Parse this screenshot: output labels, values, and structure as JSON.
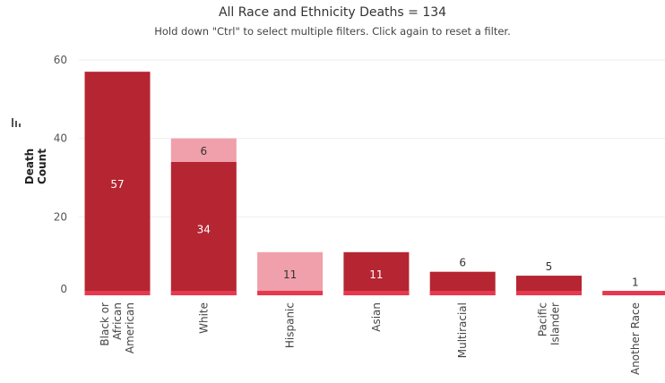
{
  "header": {
    "title": "All Race and Ethnicity Deaths = 134",
    "subtitle": "Hold down \"Ctrl\" to select multiple filters. Click again to reset a filter."
  },
  "colors": {
    "primary": "#b52532",
    "secondary": "#f0a0aa",
    "base_strip": "#e63950",
    "gridline": "#efefef"
  },
  "chart_data": {
    "type": "bar",
    "stacked": true,
    "ylabel": "Death Count",
    "ylim": [
      0,
      60
    ],
    "yticks": [
      0,
      20,
      40,
      60
    ],
    "grid": true,
    "categories": [
      [
        "Black or",
        "African",
        "American"
      ],
      [
        "White"
      ],
      [
        "Hispanic"
      ],
      [
        "Asian"
      ],
      [
        "Multiracial"
      ],
      [
        "Pacific",
        "Islander"
      ],
      [
        "Another Race"
      ]
    ],
    "series": [
      {
        "color": "#b52532",
        "values": [
          57,
          34,
          0,
          11,
          6,
          5,
          1
        ],
        "labels": [
          "57",
          "34",
          "",
          "11",
          "6",
          "5",
          "1"
        ]
      },
      {
        "color": "#f0a0aa",
        "values": [
          0,
          6,
          11,
          0,
          0,
          0,
          0
        ],
        "labels": [
          "",
          "6",
          "11",
          "",
          "",
          "",
          ""
        ]
      }
    ]
  }
}
